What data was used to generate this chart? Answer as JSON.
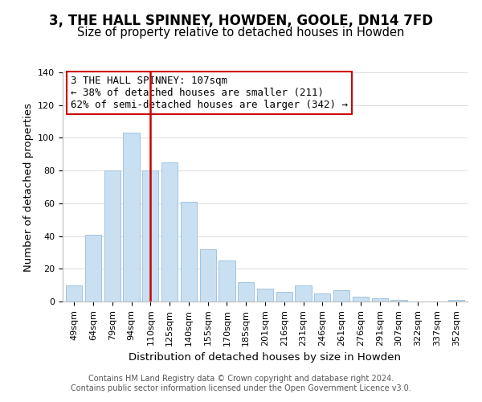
{
  "title": "3, THE HALL SPINNEY, HOWDEN, GOOLE, DN14 7FD",
  "subtitle": "Size of property relative to detached houses in Howden",
  "xlabel": "Distribution of detached houses by size in Howden",
  "ylabel": "Number of detached properties",
  "bar_labels": [
    "49sqm",
    "64sqm",
    "79sqm",
    "94sqm",
    "110sqm",
    "125sqm",
    "140sqm",
    "155sqm",
    "170sqm",
    "185sqm",
    "201sqm",
    "216sqm",
    "231sqm",
    "246sqm",
    "261sqm",
    "276sqm",
    "291sqm",
    "307sqm",
    "322sqm",
    "337sqm",
    "352sqm"
  ],
  "bar_values": [
    10,
    41,
    80,
    103,
    80,
    85,
    61,
    32,
    25,
    12,
    8,
    6,
    10,
    5,
    7,
    3,
    2,
    1,
    0,
    0,
    1
  ],
  "bar_color": "#c9dff2",
  "bar_edge_color": "#a0c4e0",
  "vline_x_index": 4,
  "vline_color": "#cc0000",
  "annotation_line1": "3 THE HALL SPINNEY: 107sqm",
  "annotation_line2": "← 38% of detached houses are smaller (211)",
  "annotation_line3": "62% of semi-detached houses are larger (342) →",
  "annotation_box_color": "#ffffff",
  "annotation_box_edge_color": "#cc0000",
  "ylim": [
    0,
    140
  ],
  "yticks": [
    0,
    20,
    40,
    60,
    80,
    100,
    120,
    140
  ],
  "footer_line1": "Contains HM Land Registry data © Crown copyright and database right 2024.",
  "footer_line2": "Contains public sector information licensed under the Open Government Licence v3.0.",
  "title_fontsize": 12,
  "subtitle_fontsize": 10.5,
  "axis_label_fontsize": 9.5,
  "tick_fontsize": 8,
  "annotation_fontsize": 9,
  "footer_fontsize": 7
}
